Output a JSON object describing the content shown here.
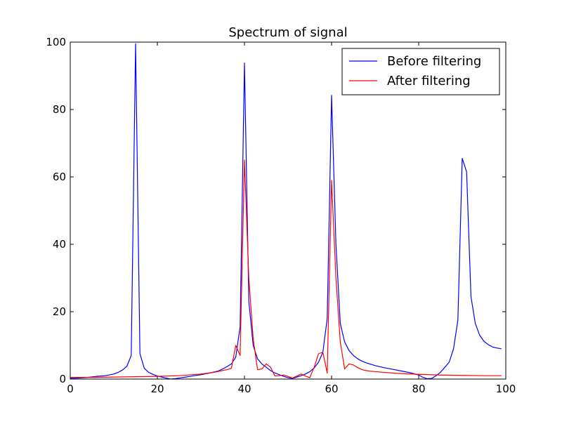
{
  "chart_data": {
    "type": "line",
    "title": "Spectrum of signal",
    "xlabel": "",
    "ylabel": "",
    "xlim": [
      0,
      100
    ],
    "ylim": [
      0,
      100
    ],
    "xticks": [
      0,
      20,
      40,
      60,
      80,
      100
    ],
    "yticks": [
      0,
      20,
      40,
      60,
      80,
      100
    ],
    "grid": false,
    "legend_position": "top-right",
    "series": [
      {
        "name": "Before filtering",
        "color": "#0000ff",
        "points": [
          [
            0,
            0.2
          ],
          [
            2,
            0.3
          ],
          [
            4,
            0.5
          ],
          [
            6,
            0.8
          ],
          [
            8,
            1.0
          ],
          [
            10,
            1.5
          ],
          [
            11,
            2.0
          ],
          [
            12,
            2.7
          ],
          [
            13,
            3.8
          ],
          [
            14,
            7.0
          ],
          [
            15,
            99.5
          ],
          [
            16,
            7.5
          ],
          [
            17,
            3.2
          ],
          [
            18,
            2.0
          ],
          [
            19,
            1.4
          ],
          [
            20,
            0.9
          ],
          [
            21,
            0.6
          ],
          [
            22,
            0.3
          ],
          [
            23,
            0.0
          ],
          [
            24,
            0.1
          ],
          [
            26,
            0.5
          ],
          [
            28,
            0.9
          ],
          [
            30,
            1.3
          ],
          [
            32,
            1.8
          ],
          [
            34,
            2.4
          ],
          [
            35,
            3.0
          ],
          [
            36,
            3.7
          ],
          [
            37,
            4.5
          ],
          [
            38,
            6.5
          ],
          [
            39,
            15.5
          ],
          [
            40,
            93.8
          ],
          [
            41,
            23.0
          ],
          [
            42,
            10.0
          ],
          [
            43,
            6.0
          ],
          [
            44,
            4.5
          ],
          [
            45,
            3.5
          ],
          [
            46,
            2.5
          ],
          [
            47,
            1.8
          ],
          [
            48,
            1.3
          ],
          [
            49,
            0.8
          ],
          [
            50,
            0.4
          ],
          [
            51,
            0.2
          ],
          [
            52,
            0.6
          ],
          [
            53,
            1.0
          ],
          [
            54,
            1.5
          ],
          [
            55,
            2.2
          ],
          [
            56,
            3.3
          ],
          [
            57,
            5.0
          ],
          [
            58,
            8.0
          ],
          [
            59,
            18.0
          ],
          [
            60,
            84.2
          ],
          [
            61,
            40.0
          ],
          [
            62,
            16.5
          ],
          [
            63,
            11.0
          ],
          [
            64,
            8.5
          ],
          [
            65,
            7.0
          ],
          [
            66,
            6.0
          ],
          [
            67,
            5.3
          ],
          [
            68,
            4.8
          ],
          [
            70,
            4.0
          ],
          [
            72,
            3.4
          ],
          [
            74,
            2.9
          ],
          [
            76,
            2.4
          ],
          [
            78,
            1.9
          ],
          [
            80,
            1.2
          ],
          [
            81,
            0.5
          ],
          [
            82,
            0.1
          ],
          [
            83,
            0.2
          ],
          [
            84,
            1.0
          ],
          [
            85,
            2.0
          ],
          [
            86,
            3.5
          ],
          [
            87,
            5.0
          ],
          [
            88,
            9.0
          ],
          [
            89,
            17.5
          ],
          [
            90,
            65.5
          ],
          [
            91,
            61.5
          ],
          [
            92,
            24.5
          ],
          [
            93,
            16.5
          ],
          [
            94,
            13.0
          ],
          [
            95,
            11.2
          ],
          [
            96,
            10.2
          ],
          [
            97,
            9.5
          ],
          [
            98,
            9.2
          ],
          [
            99,
            9.0
          ]
        ]
      },
      {
        "name": "After filtering",
        "color": "#ff0000",
        "points": [
          [
            0,
            0.5
          ],
          [
            5,
            0.5
          ],
          [
            10,
            0.6
          ],
          [
            15,
            0.7
          ],
          [
            20,
            0.8
          ],
          [
            25,
            1.0
          ],
          [
            30,
            1.5
          ],
          [
            33,
            2.0
          ],
          [
            36,
            2.8
          ],
          [
            37,
            3.2
          ],
          [
            38,
            10.0
          ],
          [
            39,
            7.0
          ],
          [
            40,
            65.0
          ],
          [
            41,
            30.0
          ],
          [
            42,
            12.0
          ],
          [
            43,
            2.8
          ],
          [
            44,
            3.0
          ],
          [
            45,
            4.5
          ],
          [
            46,
            3.5
          ],
          [
            47,
            0.9
          ],
          [
            48,
            1.0
          ],
          [
            49,
            1.2
          ],
          [
            50,
            0.8
          ],
          [
            51,
            0.3
          ],
          [
            52,
            0.9
          ],
          [
            53,
            1.5
          ],
          [
            54,
            0.9
          ],
          [
            55,
            0.4
          ],
          [
            56,
            3.5
          ],
          [
            57,
            7.5
          ],
          [
            58,
            8.0
          ],
          [
            59,
            1.8
          ],
          [
            60,
            59.0
          ],
          [
            61,
            30.0
          ],
          [
            62,
            11.0
          ],
          [
            63,
            3.0
          ],
          [
            64,
            4.5
          ],
          [
            65,
            4.2
          ],
          [
            66,
            3.4
          ],
          [
            67,
            2.8
          ],
          [
            68,
            2.5
          ],
          [
            70,
            2.2
          ],
          [
            75,
            1.7
          ],
          [
            80,
            1.4
          ],
          [
            85,
            1.2
          ],
          [
            90,
            1.1
          ],
          [
            95,
            1.0
          ],
          [
            99,
            1.0
          ]
        ]
      }
    ]
  }
}
